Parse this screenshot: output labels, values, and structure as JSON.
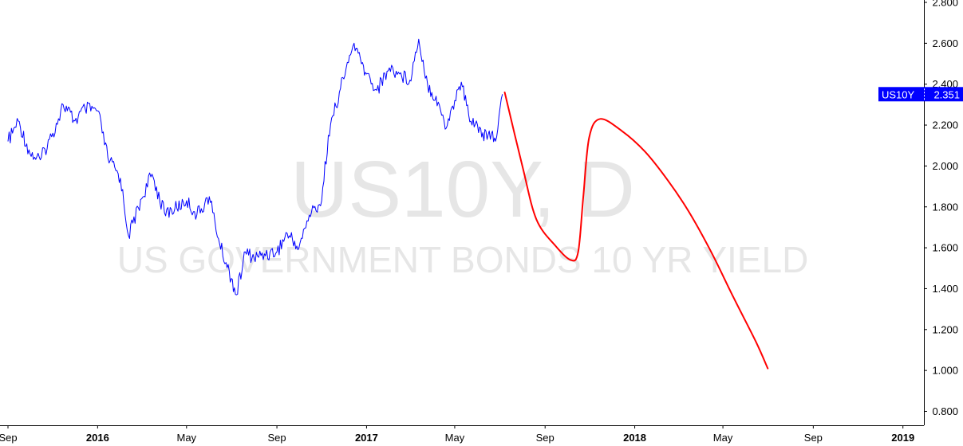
{
  "chart_data": {
    "type": "line",
    "watermark": {
      "symbol": "US10Y, D",
      "description": "US GOVERNMENT BONDS 10 YR YIELD"
    },
    "x_tick_labels": [
      {
        "label": "Sep",
        "bold": false,
        "date": "2015-09-01"
      },
      {
        "label": "2016",
        "bold": true,
        "date": "2016-01-01"
      },
      {
        "label": "May",
        "bold": false,
        "date": "2016-05-01"
      },
      {
        "label": "Sep",
        "bold": false,
        "date": "2016-09-01"
      },
      {
        "label": "2017",
        "bold": true,
        "date": "2017-01-01"
      },
      {
        "label": "May",
        "bold": false,
        "date": "2017-05-01"
      },
      {
        "label": "Sep",
        "bold": false,
        "date": "2017-09-01"
      },
      {
        "label": "2018",
        "bold": true,
        "date": "2018-01-01"
      },
      {
        "label": "May",
        "bold": false,
        "date": "2018-05-01"
      },
      {
        "label": "Sep",
        "bold": false,
        "date": "2018-09-01"
      },
      {
        "label": "2019",
        "bold": true,
        "date": "2019-01-01"
      }
    ],
    "x_range": [
      "2015-09-01",
      "2019-01-10"
    ],
    "y_ticks": [
      "0.800",
      "1.000",
      "1.200",
      "1.400",
      "1.600",
      "1.800",
      "2.000",
      "2.200",
      "2.400",
      "2.600",
      "2.800"
    ],
    "ylim": [
      0.72,
      2.82
    ],
    "series": [
      {
        "kind": "price",
        "color": "#0000ff",
        "points": [
          [
            "2015-09-01",
            2.12
          ],
          [
            "2015-09-15",
            2.22
          ],
          [
            "2015-10-01",
            2.06
          ],
          [
            "2015-10-15",
            2.03
          ],
          [
            "2015-11-01",
            2.16
          ],
          [
            "2015-11-15",
            2.3
          ],
          [
            "2015-12-01",
            2.22
          ],
          [
            "2015-12-15",
            2.28
          ],
          [
            "2016-01-01",
            2.27
          ],
          [
            "2016-01-15",
            2.04
          ],
          [
            "2016-02-01",
            1.94
          ],
          [
            "2016-02-12",
            1.66
          ],
          [
            "2016-03-01",
            1.84
          ],
          [
            "2016-03-15",
            1.96
          ],
          [
            "2016-04-01",
            1.77
          ],
          [
            "2016-04-15",
            1.79
          ],
          [
            "2016-05-01",
            1.83
          ],
          [
            "2016-05-15",
            1.76
          ],
          [
            "2016-06-01",
            1.85
          ],
          [
            "2016-06-15",
            1.62
          ],
          [
            "2016-07-01",
            1.45
          ],
          [
            "2016-07-08",
            1.37
          ],
          [
            "2016-07-20",
            1.58
          ],
          [
            "2016-08-01",
            1.55
          ],
          [
            "2016-08-15",
            1.57
          ],
          [
            "2016-09-01",
            1.58
          ],
          [
            "2016-09-15",
            1.67
          ],
          [
            "2016-10-01",
            1.6
          ],
          [
            "2016-10-15",
            1.76
          ],
          [
            "2016-11-01",
            1.83
          ],
          [
            "2016-11-10",
            2.15
          ],
          [
            "2016-11-25",
            2.36
          ],
          [
            "2016-12-15",
            2.6
          ],
          [
            "2016-12-25",
            2.5
          ],
          [
            "2017-01-01",
            2.45
          ],
          [
            "2017-01-15",
            2.37
          ],
          [
            "2017-02-01",
            2.48
          ],
          [
            "2017-02-15",
            2.45
          ],
          [
            "2017-03-01",
            2.42
          ],
          [
            "2017-03-13",
            2.62
          ],
          [
            "2017-03-25",
            2.4
          ],
          [
            "2017-04-10",
            2.3
          ],
          [
            "2017-04-18",
            2.18
          ],
          [
            "2017-05-01",
            2.32
          ],
          [
            "2017-05-10",
            2.41
          ],
          [
            "2017-05-20",
            2.25
          ],
          [
            "2017-06-01",
            2.2
          ],
          [
            "2017-06-14",
            2.13
          ],
          [
            "2017-06-20",
            2.16
          ],
          [
            "2017-06-27",
            2.14
          ],
          [
            "2017-07-05",
            2.351
          ]
        ]
      },
      {
        "kind": "projection",
        "color": "#ff0000",
        "points": [
          [
            "2017-07-08",
            2.36
          ],
          [
            "2017-08-01",
            2.0
          ],
          [
            "2017-08-20",
            1.74
          ],
          [
            "2017-09-15",
            1.61
          ],
          [
            "2017-10-06",
            1.54
          ],
          [
            "2017-10-16",
            1.58
          ],
          [
            "2017-10-23",
            1.85
          ],
          [
            "2017-10-31",
            2.14
          ],
          [
            "2017-11-15",
            2.23
          ],
          [
            "2017-12-15",
            2.17
          ],
          [
            "2018-01-15",
            2.07
          ],
          [
            "2018-02-15",
            1.93
          ],
          [
            "2018-03-15",
            1.78
          ],
          [
            "2018-04-15",
            1.58
          ],
          [
            "2018-05-15",
            1.36
          ],
          [
            "2018-06-15",
            1.14
          ],
          [
            "2018-07-01",
            1.01
          ]
        ]
      }
    ],
    "last_value_badge": {
      "symbol": "US10Y",
      "value": "2.351",
      "background": "#0000ff",
      "text_color": "#ffffff"
    },
    "grid": false
  }
}
